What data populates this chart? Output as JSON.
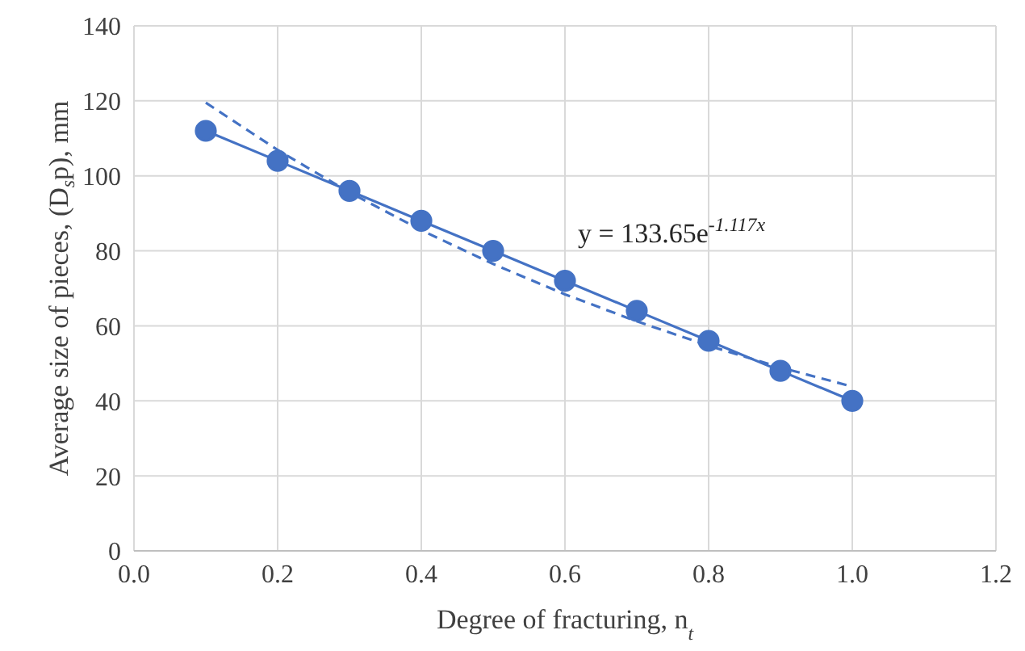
{
  "chart_data": {
    "type": "line",
    "xlabel": "Degree of fracturing, n$_{t}$",
    "ylabel": "Average size of pieces, (D$_{s}$p), mm",
    "annotations": [
      "y = 133.65e$^{-1.117x}$"
    ],
    "series": [
      {
        "color": "#4472c4",
        "marker": "circle",
        "line_style": "solid",
        "x": [
          0.1,
          0.2,
          0.3,
          0.4,
          0.5,
          0.6,
          0.7,
          0.8,
          0.9,
          1.0
        ],
        "values": [
          112,
          104,
          96,
          88,
          80,
          72,
          64,
          56,
          48,
          40
        ]
      },
      {
        "color": "#4472c4",
        "marker": "none",
        "line_style": "dashed",
        "x": [
          0.1,
          0.2,
          0.3,
          0.4,
          0.5,
          0.6,
          0.7,
          0.8,
          0.9,
          1.0
        ],
        "values": [
          119.5,
          106.9,
          95.6,
          85.5,
          76.5,
          68.4,
          61.2,
          54.7,
          48.9,
          43.8
        ]
      }
    ],
    "xlim": [
      0,
      1.2
    ],
    "xticks": [
      {
        "value": 0,
        "label": "0.0"
      },
      0.2,
      0.4,
      0.6,
      0.8,
      {
        "value": 1,
        "label": "1.0"
      },
      1.2
    ],
    "ylim": [
      0,
      140
    ],
    "yticks": [
      0,
      20,
      40,
      60,
      80,
      100,
      120,
      140
    ],
    "grid": true
  }
}
